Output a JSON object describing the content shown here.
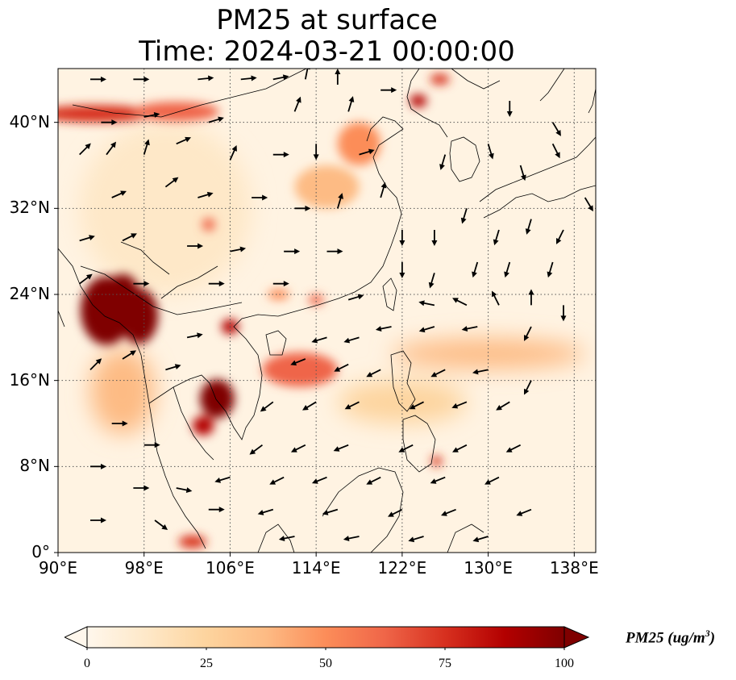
{
  "title_line1": "PM25 at surface",
  "title_line2": "Time: 2024-03-21 00:00:00",
  "axes": {
    "lon_ticks": [
      "90°E",
      "98°E",
      "106°E",
      "114°E",
      "122°E",
      "130°E",
      "138°E"
    ],
    "lat_ticks": [
      "0°",
      "8°N",
      "16°N",
      "24°N",
      "32°N",
      "40°N"
    ],
    "lon_values": [
      90,
      98,
      106,
      114,
      122,
      130,
      138
    ],
    "lat_values": [
      0,
      8,
      16,
      24,
      32,
      40
    ],
    "lon_range": [
      90,
      140
    ],
    "lat_range": [
      0,
      45
    ],
    "gridlines": "dotted"
  },
  "colorbar": {
    "label_main": "PM25 (ug/m",
    "label_sup": "3",
    "label_close": ")",
    "ticks": [
      "0",
      "25",
      "50",
      "75",
      "100"
    ],
    "tick_values": [
      0,
      25,
      50,
      75,
      100
    ],
    "range": [
      0,
      100
    ],
    "colormap": "OrRd",
    "extend": "both",
    "colors": [
      "#fff7ec",
      "#fee8c8",
      "#fdd49e",
      "#fdbb84",
      "#fc8d59",
      "#ef6548",
      "#d7301f",
      "#b30000",
      "#7f0000"
    ]
  },
  "hotspots": [
    {
      "lon": 94.5,
      "lat": 22.5,
      "value": 100,
      "rx": 2.4,
      "ry": 3.2
    },
    {
      "lon": 97.5,
      "lat": 22.0,
      "value": 100,
      "rx": 1.8,
      "ry": 2.6
    },
    {
      "lon": 96.0,
      "lat": 24.5,
      "value": 95,
      "rx": 1.4,
      "ry": 1.4
    },
    {
      "lon": 104.8,
      "lat": 14.3,
      "value": 100,
      "rx": 1.6,
      "ry": 1.8
    },
    {
      "lon": 103.5,
      "lat": 11.8,
      "value": 90,
      "rx": 1.0,
      "ry": 0.9
    },
    {
      "lon": 106.0,
      "lat": 21.0,
      "value": 85,
      "rx": 0.8,
      "ry": 0.7
    },
    {
      "lon": 112.5,
      "lat": 17.0,
      "value": 60,
      "rx": 3.5,
      "ry": 1.6
    },
    {
      "lon": 93.5,
      "lat": 40.8,
      "value": 75,
      "rx": 5.5,
      "ry": 0.8
    },
    {
      "lon": 101.0,
      "lat": 41.0,
      "value": 60,
      "rx": 4.0,
      "ry": 0.9
    },
    {
      "lon": 123.5,
      "lat": 42.0,
      "value": 85,
      "rx": 0.8,
      "ry": 0.6
    },
    {
      "lon": 125.5,
      "lat": 44.0,
      "value": 80,
      "rx": 0.9,
      "ry": 0.5
    },
    {
      "lon": 125.2,
      "lat": 8.5,
      "value": 75,
      "rx": 0.5,
      "ry": 0.5
    },
    {
      "lon": 104.0,
      "lat": 30.5,
      "value": 60,
      "rx": 0.6,
      "ry": 0.6
    },
    {
      "lon": 114.0,
      "lat": 23.5,
      "value": 65,
      "rx": 0.7,
      "ry": 0.5
    },
    {
      "lon": 110.5,
      "lat": 24.0,
      "value": 55,
      "rx": 1.0,
      "ry": 0.5
    },
    {
      "lon": 102.5,
      "lat": 1.0,
      "value": 70,
      "rx": 1.3,
      "ry": 0.6
    },
    {
      "lon": 118.0,
      "lat": 38.0,
      "value": 45,
      "rx": 2.0,
      "ry": 2.0
    },
    {
      "lon": 115.0,
      "lat": 34.0,
      "value": 40,
      "rx": 3.0,
      "ry": 2.0
    },
    {
      "lon": 130.0,
      "lat": 18.5,
      "value": 32,
      "rx": 9.0,
      "ry": 1.4
    },
    {
      "lon": 122.0,
      "lat": 14.0,
      "value": 25,
      "rx": 6.0,
      "ry": 2.0
    },
    {
      "lon": 100.0,
      "lat": 32.0,
      "value": 18,
      "rx": 8.0,
      "ry": 8.0
    },
    {
      "lon": 96.0,
      "lat": 15.0,
      "value": 35,
      "rx": 3.0,
      "ry": 4.0
    }
  ],
  "wind_vectors": [
    {
      "lon": 93,
      "lat": 44,
      "u": 1,
      "v": 0
    },
    {
      "lon": 97,
      "lat": 44,
      "u": 1,
      "v": 0
    },
    {
      "lon": 103,
      "lat": 44,
      "u": 1,
      "v": 0.1
    },
    {
      "lon": 107,
      "lat": 44,
      "u": 1,
      "v": 0.1
    },
    {
      "lon": 110,
      "lat": 44,
      "u": 1,
      "v": 0.2
    },
    {
      "lon": 113,
      "lat": 44,
      "u": 0.2,
      "v": 1
    },
    {
      "lon": 116,
      "lat": 43.5,
      "u": 0,
      "v": 1
    },
    {
      "lon": 120,
      "lat": 43,
      "u": 1,
      "v": 0
    },
    {
      "lon": 94,
      "lat": 40,
      "u": 1,
      "v": 0
    },
    {
      "lon": 98,
      "lat": 40.5,
      "u": 1,
      "v": 0.2
    },
    {
      "lon": 104,
      "lat": 40,
      "u": 1,
      "v": 0.3
    },
    {
      "lon": 112,
      "lat": 41,
      "u": 0.4,
      "v": 1
    },
    {
      "lon": 117,
      "lat": 41,
      "u": 0.3,
      "v": 1
    },
    {
      "lon": 92,
      "lat": 37,
      "u": 0.7,
      "v": 0.7
    },
    {
      "lon": 94.5,
      "lat": 37,
      "u": 0.6,
      "v": 0.8
    },
    {
      "lon": 98,
      "lat": 37,
      "u": 0.3,
      "v": 1
    },
    {
      "lon": 101,
      "lat": 38,
      "u": 0.9,
      "v": 0.4
    },
    {
      "lon": 106,
      "lat": 36.5,
      "u": 0.4,
      "v": 0.9
    },
    {
      "lon": 110,
      "lat": 37,
      "u": 1,
      "v": 0
    },
    {
      "lon": 114,
      "lat": 38,
      "u": 0,
      "v": -1
    },
    {
      "lon": 118,
      "lat": 37,
      "u": 1,
      "v": 0.3
    },
    {
      "lon": 95,
      "lat": 33,
      "u": 0.9,
      "v": 0.4
    },
    {
      "lon": 100,
      "lat": 34,
      "u": 0.8,
      "v": 0.6
    },
    {
      "lon": 103,
      "lat": 33,
      "u": 1,
      "v": 0.3
    },
    {
      "lon": 108,
      "lat": 33,
      "u": 1,
      "v": 0
    },
    {
      "lon": 112,
      "lat": 32,
      "u": 1,
      "v": 0
    },
    {
      "lon": 116,
      "lat": 32,
      "u": 0.3,
      "v": 1
    },
    {
      "lon": 120,
      "lat": 33,
      "u": 0.3,
      "v": 1
    },
    {
      "lon": 92,
      "lat": 29,
      "u": 1,
      "v": 0.3
    },
    {
      "lon": 96,
      "lat": 29,
      "u": 1,
      "v": 0.5
    },
    {
      "lon": 102,
      "lat": 28.5,
      "u": 1,
      "v": 0
    },
    {
      "lon": 106,
      "lat": 28,
      "u": 1,
      "v": 0.2
    },
    {
      "lon": 111,
      "lat": 28,
      "u": 1,
      "v": 0
    },
    {
      "lon": 115,
      "lat": 28,
      "u": 1,
      "v": 0
    },
    {
      "lon": 92,
      "lat": 25,
      "u": 0.8,
      "v": 0.6
    },
    {
      "lon": 97,
      "lat": 25,
      "u": 1,
      "v": 0
    },
    {
      "lon": 104,
      "lat": 25,
      "u": 1,
      "v": 0
    },
    {
      "lon": 110,
      "lat": 25,
      "u": 1,
      "v": 0
    },
    {
      "lon": 117,
      "lat": 23.5,
      "u": 1,
      "v": 0.3
    },
    {
      "lon": 125,
      "lat": 23,
      "u": -1,
      "v": 0.2
    },
    {
      "lon": 128,
      "lat": 23,
      "u": -1,
      "v": 0.5
    },
    {
      "lon": 131,
      "lat": 23,
      "u": -0.5,
      "v": 1
    },
    {
      "lon": 134,
      "lat": 23,
      "u": 0,
      "v": 1
    },
    {
      "lon": 137,
      "lat": 23,
      "u": 0,
      "v": -1
    },
    {
      "lon": 115,
      "lat": 20,
      "u": -1,
      "v": -0.3
    },
    {
      "lon": 118,
      "lat": 20,
      "u": -1,
      "v": -0.3
    },
    {
      "lon": 121,
      "lat": 21,
      "u": -1,
      "v": -0.2
    },
    {
      "lon": 125,
      "lat": 21,
      "u": -1,
      "v": -0.3
    },
    {
      "lon": 129,
      "lat": 21,
      "u": -1,
      "v": -0.2
    },
    {
      "lon": 134,
      "lat": 21,
      "u": -0.5,
      "v": -1
    },
    {
      "lon": 113,
      "lat": 18,
      "u": -1,
      "v": -0.4
    },
    {
      "lon": 117,
      "lat": 17.5,
      "u": -1,
      "v": -0.5
    },
    {
      "lon": 120,
      "lat": 17,
      "u": -1,
      "v": -0.5
    },
    {
      "lon": 126,
      "lat": 17,
      "u": -1,
      "v": -0.5
    },
    {
      "lon": 130,
      "lat": 17,
      "u": -1,
      "v": -0.2
    },
    {
      "lon": 134,
      "lat": 16,
      "u": -0.5,
      "v": -1
    },
    {
      "lon": 110,
      "lat": 14,
      "u": -0.8,
      "v": -0.6
    },
    {
      "lon": 114,
      "lat": 14,
      "u": -1,
      "v": -0.6
    },
    {
      "lon": 118,
      "lat": 14,
      "u": -1,
      "v": -0.5
    },
    {
      "lon": 124,
      "lat": 14,
      "u": -1,
      "v": -0.5
    },
    {
      "lon": 128,
      "lat": 14,
      "u": -1,
      "v": -0.4
    },
    {
      "lon": 132,
      "lat": 14,
      "u": -1,
      "v": -0.6
    },
    {
      "lon": 109,
      "lat": 10,
      "u": -0.8,
      "v": -0.6
    },
    {
      "lon": 113,
      "lat": 10,
      "u": -1,
      "v": -0.5
    },
    {
      "lon": 117,
      "lat": 10,
      "u": -1,
      "v": -0.4
    },
    {
      "lon": 123,
      "lat": 10,
      "u": -1,
      "v": -0.5
    },
    {
      "lon": 128,
      "lat": 10,
      "u": -1,
      "v": -0.5
    },
    {
      "lon": 133,
      "lat": 10,
      "u": -1,
      "v": -0.5
    },
    {
      "lon": 106,
      "lat": 7,
      "u": -1,
      "v": -0.3
    },
    {
      "lon": 111,
      "lat": 7,
      "u": -1,
      "v": -0.5
    },
    {
      "lon": 115,
      "lat": 7,
      "u": -1,
      "v": -0.4
    },
    {
      "lon": 120,
      "lat": 7,
      "u": -1,
      "v": -0.5
    },
    {
      "lon": 126,
      "lat": 7,
      "u": -1,
      "v": -0.4
    },
    {
      "lon": 131,
      "lat": 7,
      "u": -1,
      "v": -0.5
    },
    {
      "lon": 110,
      "lat": 4,
      "u": -1,
      "v": -0.3
    },
    {
      "lon": 116,
      "lat": 4,
      "u": -1,
      "v": -0.3
    },
    {
      "lon": 122,
      "lat": 4,
      "u": -1,
      "v": -0.5
    },
    {
      "lon": 127,
      "lat": 4,
      "u": -1,
      "v": -0.4
    },
    {
      "lon": 134,
      "lat": 4,
      "u": -1,
      "v": -0.4
    },
    {
      "lon": 112,
      "lat": 1.5,
      "u": -1,
      "v": -0.2
    },
    {
      "lon": 118,
      "lat": 1.5,
      "u": -1,
      "v": -0.2
    },
    {
      "lon": 124,
      "lat": 1.5,
      "u": -1,
      "v": -0.3
    },
    {
      "lon": 130,
      "lat": 1.5,
      "u": -1,
      "v": -0.3
    },
    {
      "lon": 93,
      "lat": 17,
      "u": 0.7,
      "v": 0.7
    },
    {
      "lon": 96,
      "lat": 18,
      "u": 0.8,
      "v": 0.5
    },
    {
      "lon": 100,
      "lat": 17,
      "u": 1,
      "v": 0.3
    },
    {
      "lon": 102,
      "lat": 20,
      "u": 1,
      "v": 0.2
    },
    {
      "lon": 95,
      "lat": 12,
      "u": 1,
      "v": 0
    },
    {
      "lon": 98,
      "lat": 10,
      "u": 1,
      "v": 0
    },
    {
      "lon": 93,
      "lat": 8,
      "u": 1,
      "v": 0
    },
    {
      "lon": 97,
      "lat": 6,
      "u": 1,
      "v": 0
    },
    {
      "lon": 101,
      "lat": 6,
      "u": 1,
      "v": -0.2
    },
    {
      "lon": 93,
      "lat": 3,
      "u": 1,
      "v": 0
    },
    {
      "lon": 99,
      "lat": 3,
      "u": 0.8,
      "v": -0.6
    },
    {
      "lon": 104,
      "lat": 4,
      "u": 1,
      "v": 0
    },
    {
      "lon": 122,
      "lat": 30,
      "u": 0,
      "v": -1
    },
    {
      "lon": 125,
      "lat": 30,
      "u": 0,
      "v": -1
    },
    {
      "lon": 128,
      "lat": 32,
      "u": -0.3,
      "v": -1
    },
    {
      "lon": 131,
      "lat": 30,
      "u": -0.3,
      "v": -1
    },
    {
      "lon": 134,
      "lat": 31,
      "u": -0.3,
      "v": -1
    },
    {
      "lon": 137,
      "lat": 30,
      "u": -0.5,
      "v": -1
    },
    {
      "lon": 122,
      "lat": 27,
      "u": 0,
      "v": -1
    },
    {
      "lon": 125,
      "lat": 26,
      "u": -0.3,
      "v": -1
    },
    {
      "lon": 129,
      "lat": 27,
      "u": -0.3,
      "v": -1
    },
    {
      "lon": 132,
      "lat": 27,
      "u": -0.3,
      "v": -1
    },
    {
      "lon": 136,
      "lat": 27,
      "u": -0.3,
      "v": -1
    },
    {
      "lon": 126,
      "lat": 37,
      "u": -0.3,
      "v": -1
    },
    {
      "lon": 130,
      "lat": 38,
      "u": 0.3,
      "v": -1
    },
    {
      "lon": 133,
      "lat": 36,
      "u": 0.3,
      "v": -1
    },
    {
      "lon": 136,
      "lat": 38,
      "u": 0.5,
      "v": -1
    },
    {
      "lon": 132,
      "lat": 42,
      "u": 0,
      "v": -1
    },
    {
      "lon": 136,
      "lat": 40,
      "u": 0.6,
      "v": -1
    },
    {
      "lon": 139,
      "lat": 33,
      "u": 0.6,
      "v": -1
    }
  ]
}
